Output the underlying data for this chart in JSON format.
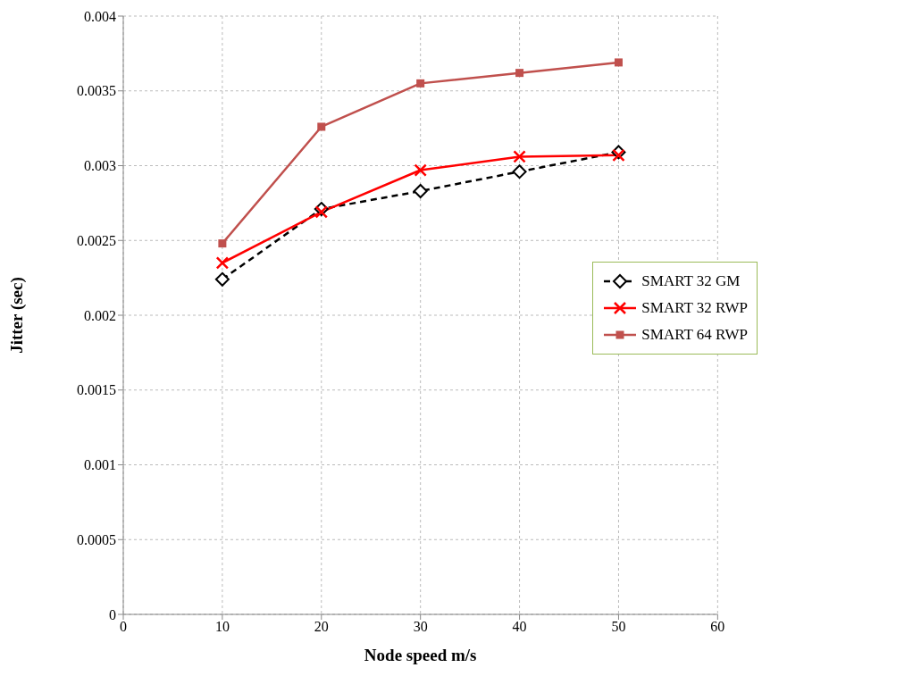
{
  "chart_data": {
    "type": "line",
    "xlabel": "Node speed m/s",
    "ylabel": "Jitter (sec)",
    "x": [
      10,
      20,
      30,
      40,
      50
    ],
    "series": [
      {
        "name": "SMART 32 GM",
        "color": "#000000",
        "values": [
          0.00224,
          0.00271,
          0.00283,
          0.00296,
          0.00309
        ],
        "marker": "diamond",
        "line_style": "dashed"
      },
      {
        "name": "SMART 32 RWP",
        "color": "#ff0000",
        "values": [
          0.00235,
          0.00269,
          0.00297,
          0.00306,
          0.00307
        ],
        "marker": "cross",
        "line_style": "solid"
      },
      {
        "name": "SMART 64 RWP",
        "color": "#c0504d",
        "values": [
          0.00248,
          0.00326,
          0.00355,
          0.00362,
          0.00369
        ],
        "marker": "square",
        "line_style": "solid"
      }
    ],
    "xlim": [
      0,
      60
    ],
    "xticks": [
      0,
      10,
      20,
      30,
      40,
      50,
      60
    ],
    "ylim": [
      0,
      0.004
    ],
    "yticks": [
      0,
      0.0005,
      0.001,
      0.0015,
      0.002,
      0.0025,
      0.003,
      0.0035,
      0.004
    ],
    "grid": true,
    "legend": "right"
  }
}
